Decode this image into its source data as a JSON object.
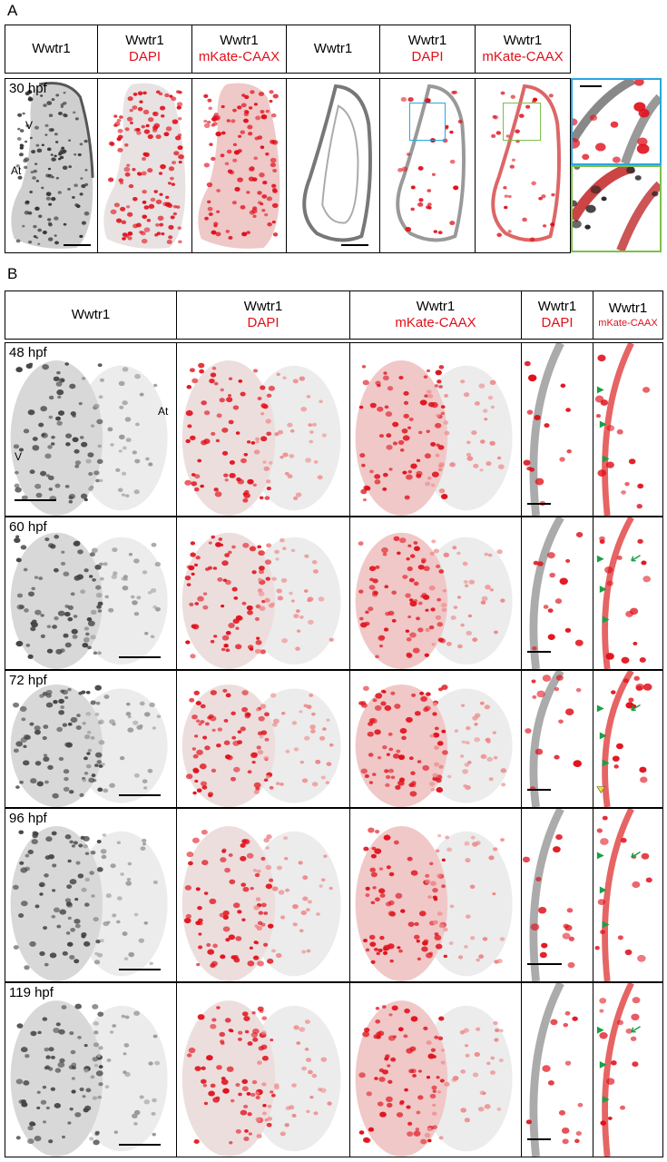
{
  "panel_a": {
    "letter": "A",
    "headers": [
      {
        "line1": "Wwtr1",
        "line2": ""
      },
      {
        "line1": "Wwtr1",
        "line2": "DAPI"
      },
      {
        "line1": "Wwtr1",
        "line2": "mKate-CAAX"
      },
      {
        "line1": "Wwtr1",
        "line2": ""
      },
      {
        "line1": "Wwtr1",
        "line2": "DAPI"
      },
      {
        "line1": "Wwtr1",
        "line2": "mKate-CAAX"
      }
    ],
    "time": "30 hpf",
    "label_v": "V",
    "label_at": "At",
    "colors": {
      "inset_blue": "#27a8e0",
      "inset_green": "#7cc04a",
      "red": "#e0101a"
    }
  },
  "panel_b": {
    "letter": "B",
    "headers": [
      {
        "line1": "Wwtr1",
        "line2": ""
      },
      {
        "line1": "Wwtr1",
        "line2": "DAPI"
      },
      {
        "line1": "Wwtr1",
        "line2": "mKate-CAAX"
      },
      {
        "line1": "Wwtr1",
        "line2": "DAPI"
      },
      {
        "line1": "Wwtr1",
        "line2": "mKate-CAAX"
      }
    ],
    "rows": [
      {
        "time": "48 hpf"
      },
      {
        "time": "60 hpf"
      },
      {
        "time": "72 hpf"
      },
      {
        "time": "96 hpf"
      },
      {
        "time": "119 hpf"
      }
    ],
    "label_v": "V",
    "label_at": "At",
    "marker_colors": {
      "filled_arrowhead": "#1aa048",
      "open_arrow": "#1aa048",
      "yellow_arrowhead": "#f2e21b"
    }
  }
}
